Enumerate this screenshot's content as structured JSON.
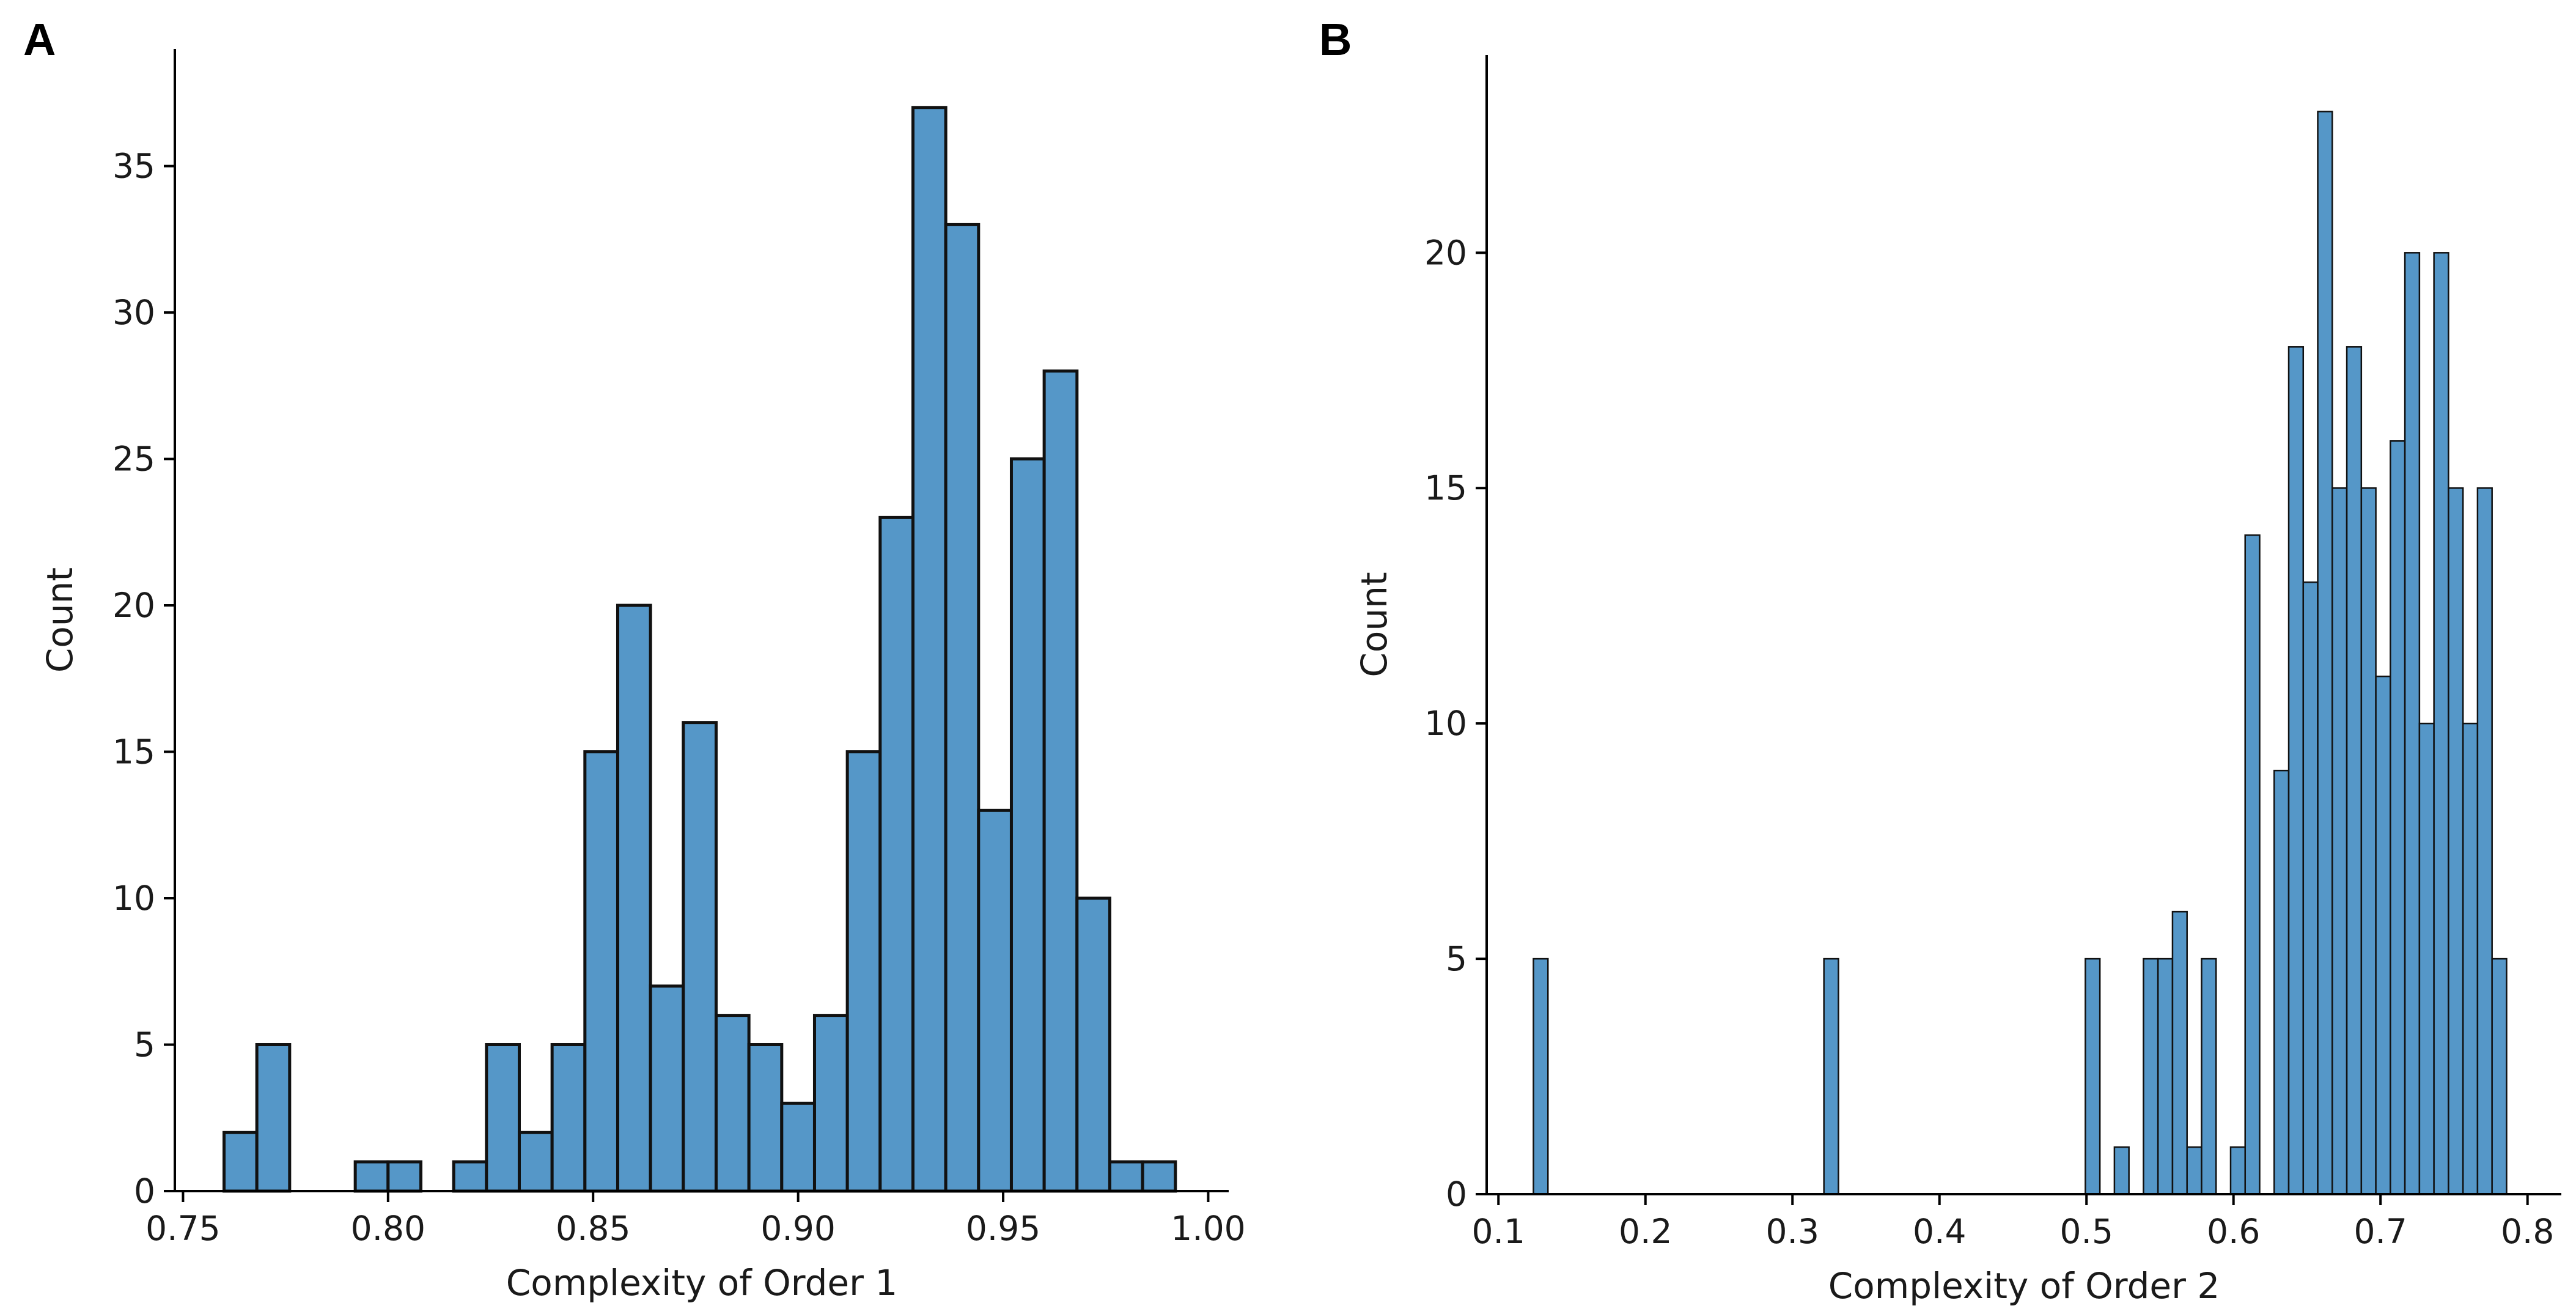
{
  "bar_color": "#5597c8",
  "edge_color": "#111111",
  "chart_data": [
    {
      "panel": "A",
      "type": "bar",
      "title": "",
      "xlabel": "Complexity of Order 1",
      "ylabel": "Count",
      "xlim": [
        0.748,
        1.005
      ],
      "ylim": [
        0,
        39
      ],
      "xticks": [
        0.75,
        0.8,
        0.85,
        0.9,
        0.95,
        1.0
      ],
      "xtick_labels": [
        "0.75",
        "0.80",
        "0.85",
        "0.90",
        "0.95",
        "1.00"
      ],
      "yticks": [
        0,
        5,
        10,
        15,
        20,
        25,
        30,
        35
      ],
      "ytick_labels": [
        "0",
        "5",
        "10",
        "15",
        "20",
        "25",
        "30",
        "35"
      ],
      "bins_start": 0.76,
      "bin_width": 0.008,
      "values": [
        2,
        5,
        0,
        0,
        1,
        1,
        0,
        1,
        5,
        2,
        5,
        15,
        20,
        7,
        16,
        6,
        5,
        3,
        6,
        15,
        23,
        37,
        33,
        13,
        25,
        28,
        10,
        1,
        1
      ]
    },
    {
      "panel": "B",
      "type": "bar",
      "title": "",
      "xlabel": "Complexity of Order 2",
      "ylabel": "Count",
      "xlim": [
        0.092,
        0.823
      ],
      "ylim": [
        0,
        24.2
      ],
      "xticks": [
        0.1,
        0.2,
        0.3,
        0.4,
        0.5,
        0.6,
        0.7,
        0.8
      ],
      "xtick_labels": [
        "0.1",
        "0.2",
        "0.3",
        "0.4",
        "0.5",
        "0.6",
        "0.7",
        "0.8"
      ],
      "yticks": [
        0,
        5,
        10,
        15,
        20
      ],
      "ytick_labels": [
        "0",
        "5",
        "10",
        "15",
        "20"
      ],
      "bins_start": 0.1238,
      "bin_width": 0.00988,
      "values": [
        5,
        0,
        0,
        0,
        0,
        0,
        0,
        0,
        0,
        0,
        0,
        0,
        0,
        0,
        0,
        0,
        0,
        0,
        0,
        0,
        5,
        0,
        0,
        0,
        0,
        0,
        0,
        0,
        0,
        0,
        0,
        0,
        0,
        0,
        0,
        0,
        0,
        0,
        5,
        0,
        1,
        0,
        5,
        5,
        6,
        1,
        5,
        0,
        1,
        14,
        0,
        9,
        18,
        13,
        23,
        15,
        18,
        15,
        11,
        16,
        20,
        10,
        20,
        15,
        10,
        15,
        5
      ]
    }
  ]
}
